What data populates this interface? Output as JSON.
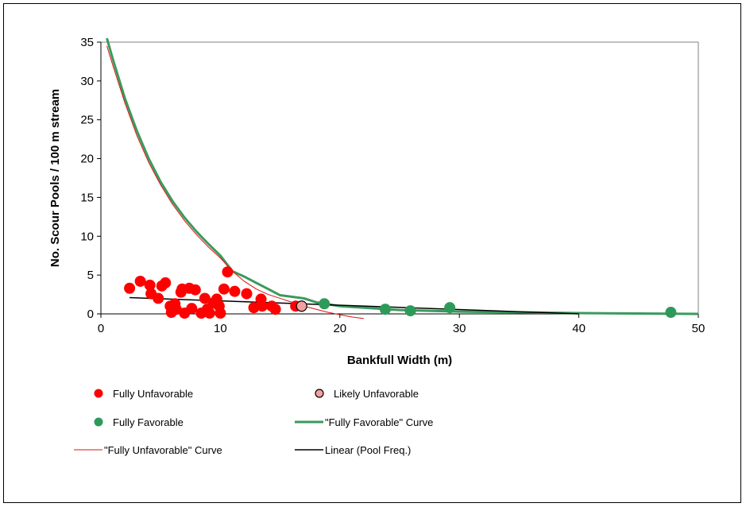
{
  "chart_data": {
    "type": "scatter",
    "title": "",
    "xlabel": "Bankfull Width (m)",
    "ylabel": "No. Scour Pools / 100 m stream",
    "xlim": [
      0,
      50
    ],
    "ylim": [
      0,
      35
    ],
    "xticks": [
      "0",
      "10",
      "20",
      "30",
      "40",
      "50"
    ],
    "yticks": [
      "0",
      "5",
      "10",
      "15",
      "20",
      "25",
      "30",
      "35"
    ],
    "grid": false,
    "legend_position": "bottom",
    "colors": {
      "fully_unfavorable": "#ff0000",
      "likely_unfavorable": "#f4a0a0",
      "fully_favorable": "#2e9a5a",
      "favorable_curve": "#3a9a5c",
      "unfavorable_curve": "#e01010",
      "linear": "#000000"
    },
    "series": [
      {
        "name": "Fully Unfavorable",
        "kind": "points",
        "points": [
          [
            2.4,
            3.3
          ],
          [
            3.3,
            4.2
          ],
          [
            4.1,
            3.7
          ],
          [
            4.2,
            2.6
          ],
          [
            4.8,
            2.0
          ],
          [
            5.1,
            3.6
          ],
          [
            5.4,
            4.0
          ],
          [
            5.8,
            1.0
          ],
          [
            5.9,
            0.2
          ],
          [
            6.2,
            1.3
          ],
          [
            6.3,
            0.6
          ],
          [
            6.7,
            2.8
          ],
          [
            6.8,
            3.2
          ],
          [
            7.0,
            0.1
          ],
          [
            7.4,
            3.3
          ],
          [
            7.6,
            0.7
          ],
          [
            7.9,
            3.1
          ],
          [
            8.4,
            0.1
          ],
          [
            8.7,
            2.0
          ],
          [
            8.9,
            0.6
          ],
          [
            9.1,
            0.1
          ],
          [
            9.4,
            1.4
          ],
          [
            9.7,
            1.9
          ],
          [
            9.9,
            1.0
          ],
          [
            10.0,
            0.1
          ],
          [
            10.3,
            3.2
          ],
          [
            10.6,
            5.4
          ],
          [
            11.2,
            2.9
          ],
          [
            12.2,
            2.6
          ],
          [
            12.8,
            0.8
          ],
          [
            13.4,
            1.9
          ],
          [
            13.5,
            1.0
          ],
          [
            14.3,
            1.0
          ],
          [
            14.6,
            0.6
          ],
          [
            16.3,
            1.0
          ]
        ]
      },
      {
        "name": "Likely Unfavorable",
        "kind": "points",
        "points": [
          [
            16.8,
            1.0
          ]
        ]
      },
      {
        "name": "Fully Favorable",
        "kind": "points",
        "points": [
          [
            18.7,
            1.3
          ],
          [
            23.8,
            0.6
          ],
          [
            25.9,
            0.4
          ],
          [
            29.2,
            0.8
          ],
          [
            47.7,
            0.2
          ]
        ]
      },
      {
        "name": "\"Fully Favorable\" Curve",
        "kind": "line",
        "points": [
          [
            0.5,
            35.5
          ],
          [
            1,
            32.8
          ],
          [
            2,
            27.8
          ],
          [
            3,
            23.6
          ],
          [
            4,
            20.0
          ],
          [
            5,
            17.0
          ],
          [
            6,
            14.5
          ],
          [
            7,
            12.4
          ],
          [
            8,
            10.6
          ],
          [
            9,
            9.0
          ],
          [
            10,
            7.5
          ],
          [
            11,
            5.5
          ],
          [
            12,
            4.8
          ],
          [
            13,
            4.0
          ],
          [
            14,
            3.2
          ],
          [
            15,
            2.4
          ],
          [
            17,
            2.0
          ],
          [
            18,
            1.5
          ],
          [
            20,
            1.0
          ],
          [
            25,
            0.5
          ],
          [
            30,
            0.3
          ],
          [
            40,
            0.1
          ],
          [
            50,
            0.0
          ]
        ]
      },
      {
        "name": "\"Fully Unfavorable\" Curve",
        "kind": "line",
        "points": [
          [
            0.5,
            34.5
          ],
          [
            1,
            32.0
          ],
          [
            2,
            27.2
          ],
          [
            3,
            23.0
          ],
          [
            4,
            19.5
          ],
          [
            5,
            16.6
          ],
          [
            6,
            14.1
          ],
          [
            7,
            12.0
          ],
          [
            8,
            10.2
          ],
          [
            9,
            8.6
          ],
          [
            10,
            7.2
          ],
          [
            11,
            5.5
          ],
          [
            12,
            4.2
          ],
          [
            13,
            3.2
          ],
          [
            14,
            2.5
          ],
          [
            15,
            2.0
          ],
          [
            16,
            1.5
          ],
          [
            17,
            1.0
          ],
          [
            18,
            0.6
          ],
          [
            19,
            0.2
          ],
          [
            20,
            -0.1
          ],
          [
            21,
            -0.4
          ],
          [
            22,
            -0.6
          ]
        ]
      },
      {
        "name": "Linear (Pool Freq.)",
        "kind": "line",
        "points": [
          [
            2.4,
            2.1
          ],
          [
            40,
            0.0
          ]
        ]
      }
    ]
  }
}
